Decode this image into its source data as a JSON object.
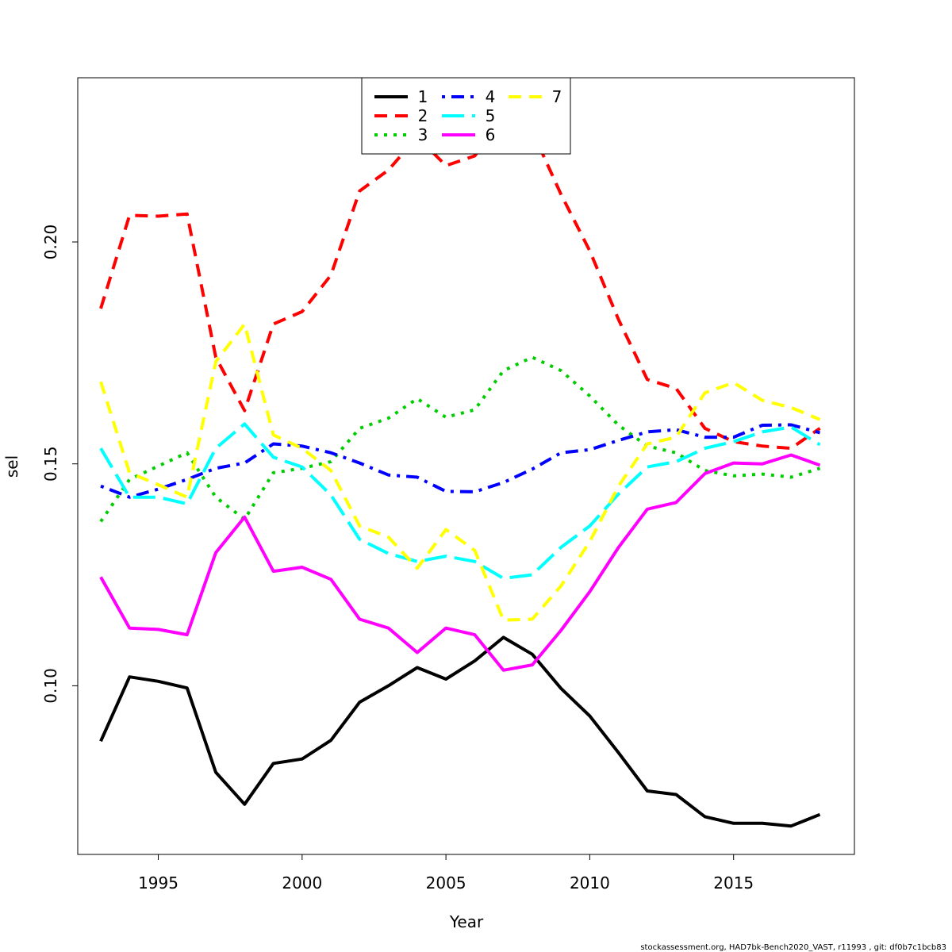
{
  "chart_data": {
    "type": "line",
    "title": "",
    "xlabel": "Year",
    "ylabel": "sel",
    "xlim": [
      1992.2,
      2019.2
    ],
    "ylim": [
      0.062,
      0.237
    ],
    "x_ticks": [
      1995,
      2000,
      2005,
      2010,
      2015
    ],
    "y_ticks": [
      0.1,
      0.15,
      0.2
    ],
    "x_tick_labels": [
      "1995",
      "2000",
      "2005",
      "2010",
      "2015"
    ],
    "y_tick_labels": [
      "0.10",
      "0.15",
      "0.20"
    ],
    "grid": false,
    "legend_position": "top-center",
    "x": [
      1993,
      1994,
      1995,
      1996,
      1997,
      1998,
      1999,
      2000,
      2001,
      2002,
      2003,
      2004,
      2005,
      2006,
      2007,
      2008,
      2009,
      2010,
      2011,
      2012,
      2013,
      2014,
      2015,
      2016,
      2017,
      2018
    ],
    "series": [
      {
        "name": "1",
        "color": "#000000",
        "dash": "solid",
        "values": [
          0.0875,
          0.102,
          0.101,
          0.0995,
          0.0805,
          0.0733,
          0.0825,
          0.0835,
          0.0877,
          0.0963,
          0.1,
          0.1041,
          0.1015,
          0.1056,
          0.1109,
          0.1071,
          0.0994,
          0.0932,
          0.0849,
          0.0763,
          0.0755,
          0.0705,
          0.069,
          0.069,
          0.0684,
          0.071
        ]
      },
      {
        "name": "2",
        "color": "#ff0000",
        "dash": "dashed",
        "values": [
          0.185,
          0.206,
          0.2058,
          0.2063,
          0.174,
          0.162,
          0.1815,
          0.1843,
          0.1925,
          0.2115,
          0.2162,
          0.2237,
          0.2172,
          0.2194,
          0.228,
          0.225,
          0.2107,
          0.198,
          0.1825,
          0.169,
          0.167,
          0.158,
          0.155,
          0.154,
          0.1535,
          0.158
        ]
      },
      {
        "name": "3",
        "color": "#00cd00",
        "dash": "dotted",
        "values": [
          0.137,
          0.1465,
          0.1495,
          0.1525,
          0.1425,
          0.1375,
          0.148,
          0.149,
          0.1505,
          0.158,
          0.1603,
          0.1647,
          0.1605,
          0.1622,
          0.171,
          0.174,
          0.171,
          0.1653,
          0.1587,
          0.154,
          0.1525,
          0.1485,
          0.1473,
          0.1477,
          0.147,
          0.149
        ]
      },
      {
        "name": "4",
        "color": "#0000ff",
        "dash": "dotdash",
        "values": [
          0.145,
          0.1425,
          0.1443,
          0.1465,
          0.149,
          0.1502,
          0.1545,
          0.154,
          0.1525,
          0.1502,
          0.1475,
          0.147,
          0.1438,
          0.1437,
          0.1458,
          0.1488,
          0.1525,
          0.1532,
          0.1553,
          0.1572,
          0.1577,
          0.156,
          0.156,
          0.1587,
          0.1588,
          0.157
        ]
      },
      {
        "name": "5",
        "color": "#00ffff",
        "dash": "longdash",
        "values": [
          0.1535,
          0.1425,
          0.1425,
          0.141,
          0.1535,
          0.159,
          0.1515,
          0.1493,
          0.143,
          0.133,
          0.1298,
          0.128,
          0.1292,
          0.128,
          0.1242,
          0.125,
          0.1312,
          0.136,
          0.1432,
          0.1493,
          0.1505,
          0.1535,
          0.155,
          0.1572,
          0.1583,
          0.1543
        ]
      },
      {
        "name": "6",
        "color": "#ff00ff",
        "dash": "solid",
        "values": [
          0.1245,
          0.113,
          0.1127,
          0.1115,
          0.13,
          0.138,
          0.1258,
          0.1267,
          0.124,
          0.115,
          0.113,
          0.1075,
          0.113,
          0.1115,
          0.1035,
          0.1047,
          0.1125,
          0.1212,
          0.1312,
          0.1398,
          0.1413,
          0.1478,
          0.1502,
          0.15,
          0.152,
          0.1497
        ]
      },
      {
        "name": "7",
        "color": "#ffff00",
        "dash": "dashed",
        "values": [
          0.1685,
          0.148,
          0.1453,
          0.1425,
          0.173,
          0.1815,
          0.1565,
          0.1535,
          0.1485,
          0.136,
          0.1335,
          0.1265,
          0.1352,
          0.1305,
          0.1148,
          0.115,
          0.1225,
          0.1325,
          0.145,
          0.1545,
          0.156,
          0.166,
          0.1683,
          0.1643,
          0.1627,
          0.16
        ]
      }
    ]
  },
  "footer": {
    "text": "stockassessment.org, HAD7bk-Bench2020_VAST, r11993 , git: df0b7c1bcb83"
  }
}
